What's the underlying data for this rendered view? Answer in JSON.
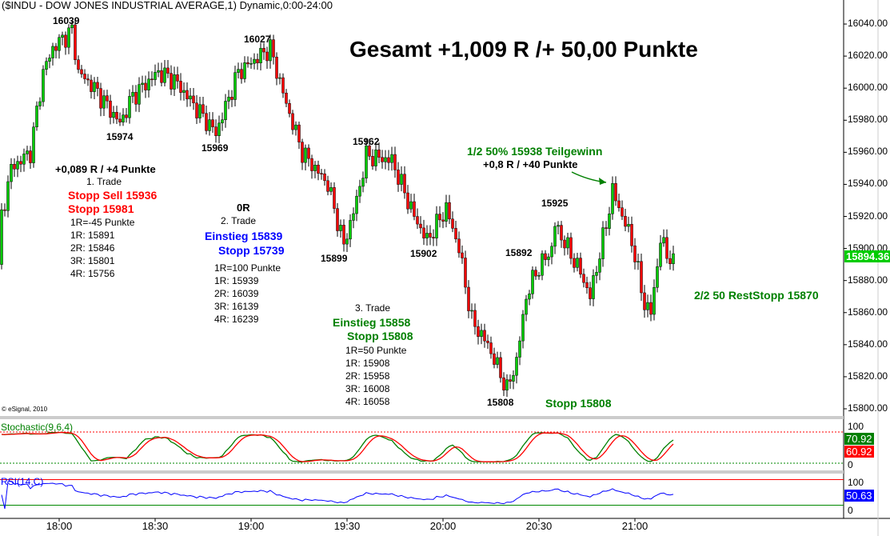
{
  "title": "($INDU - DOW JONES INDUSTRIAL AVERAGE,1) Dynamic,0:00-24:00",
  "headline": "Gesamt +1,009 R /+ 50,00 Punkte",
  "copyright": "© eSignal, 2010",
  "trade1": {
    "result": "+0,089 R / +4 Punkte",
    "name": "1. Trade",
    "entry": "Stopp Sell 15936",
    "stop": "Stopp 15981",
    "r": "1R=-45 Punkte",
    "t1": "1R: 15891",
    "t2": "2R: 15846",
    "t3": "3R: 15801",
    "t4": "4R: 15756"
  },
  "trade2": {
    "result": "0R",
    "name": "2. Trade",
    "entry": "Einstieg 15839",
    "stop": "Stopp 15739",
    "r": "1R=100 Punkte",
    "t1": "1R: 15939",
    "t2": "2R: 16039",
    "t3": "3R: 16139",
    "t4": "4R: 16239"
  },
  "trade3": {
    "name": "3. Trade",
    "entry": "Einstieg 15858",
    "stop": "Stopp 15808",
    "r": "1R=50 Punkte",
    "t1": "1R: 15908",
    "t2": "2R: 15958",
    "t3": "3R: 16008",
    "t4": "4R: 16058",
    "stop_label": "Stopp 15808",
    "partial": "1/2 50% 15938 Teilgewinn",
    "partial_r": "+0,8 R / +40 Punkte",
    "rest": "2/2 50 RestStopp 15870"
  },
  "swings": [
    "16039",
    "16027",
    "15974",
    "15969",
    "15962",
    "15899",
    "15902",
    "15892",
    "15925",
    "15808"
  ],
  "indicators": {
    "stoch_label": "Stochastic(9,6,4)",
    "stoch_value": "60.92",
    "stoch_value2": "70.92",
    "rsi_label": "RSI(14,C)",
    "rsi_value": "50.63",
    "top": "100",
    "bottom": "0"
  },
  "colors": {
    "up": "#00cc00",
    "down": "#ff0000",
    "stoch_k": "#008000",
    "stoch_d": "#ff0000",
    "rsi": "#0000ff",
    "last_price_bg": "#00cc00"
  },
  "chart_data": {
    "type": "candlestick",
    "title": "($INDU - DOW JONES INDUSTRIAL AVERAGE,1) Dynamic,0:00-24:00",
    "interval": "1 minute",
    "y_ticks": [
      "16040.00",
      "16020.00",
      "16000.00",
      "15980.00",
      "15960.00",
      "15940.00",
      "15920.00",
      "15900.00",
      "15880.00",
      "15860.00",
      "15840.00",
      "15820.00",
      "15800.00"
    ],
    "ylim": [
      15794,
      16050
    ],
    "x_ticks": [
      "18:00",
      "18:30",
      "19:00",
      "19:30",
      "20:00",
      "20:30",
      "21:00"
    ],
    "last_price": "15894.36",
    "price_path_minutes_from_1800": [
      [
        -18,
        15920
      ],
      [
        -15,
        15950
      ],
      [
        -9,
        15960
      ],
      [
        -5,
        16010
      ],
      [
        -2,
        16025
      ],
      [
        4,
        16036
      ],
      [
        6,
        16010
      ],
      [
        11,
        16000
      ],
      [
        19,
        15978
      ],
      [
        23,
        15995
      ],
      [
        31,
        16010
      ],
      [
        36,
        16005
      ],
      [
        40,
        15995
      ],
      [
        49,
        15972
      ],
      [
        56,
        16010
      ],
      [
        66,
        16025
      ],
      [
        71,
        15990
      ],
      [
        76,
        15960
      ],
      [
        84,
        15940
      ],
      [
        89,
        15902
      ],
      [
        93,
        15930
      ],
      [
        96,
        15958
      ],
      [
        104,
        15955
      ],
      [
        111,
        15920
      ],
      [
        115,
        15905
      ],
      [
        121,
        15925
      ],
      [
        125,
        15900
      ],
      [
        129,
        15855
      ],
      [
        134,
        15840
      ],
      [
        140,
        15812
      ],
      [
        143,
        15830
      ],
      [
        146,
        15870
      ],
      [
        149,
        15885
      ],
      [
        154,
        15900
      ],
      [
        155,
        15915
      ],
      [
        163,
        15885
      ],
      [
        166,
        15870
      ],
      [
        171,
        15915
      ],
      [
        173,
        15936
      ],
      [
        179,
        15905
      ],
      [
        183,
        15865
      ],
      [
        185,
        15860
      ],
      [
        188,
        15905
      ],
      [
        192,
        15890
      ]
    ]
  }
}
